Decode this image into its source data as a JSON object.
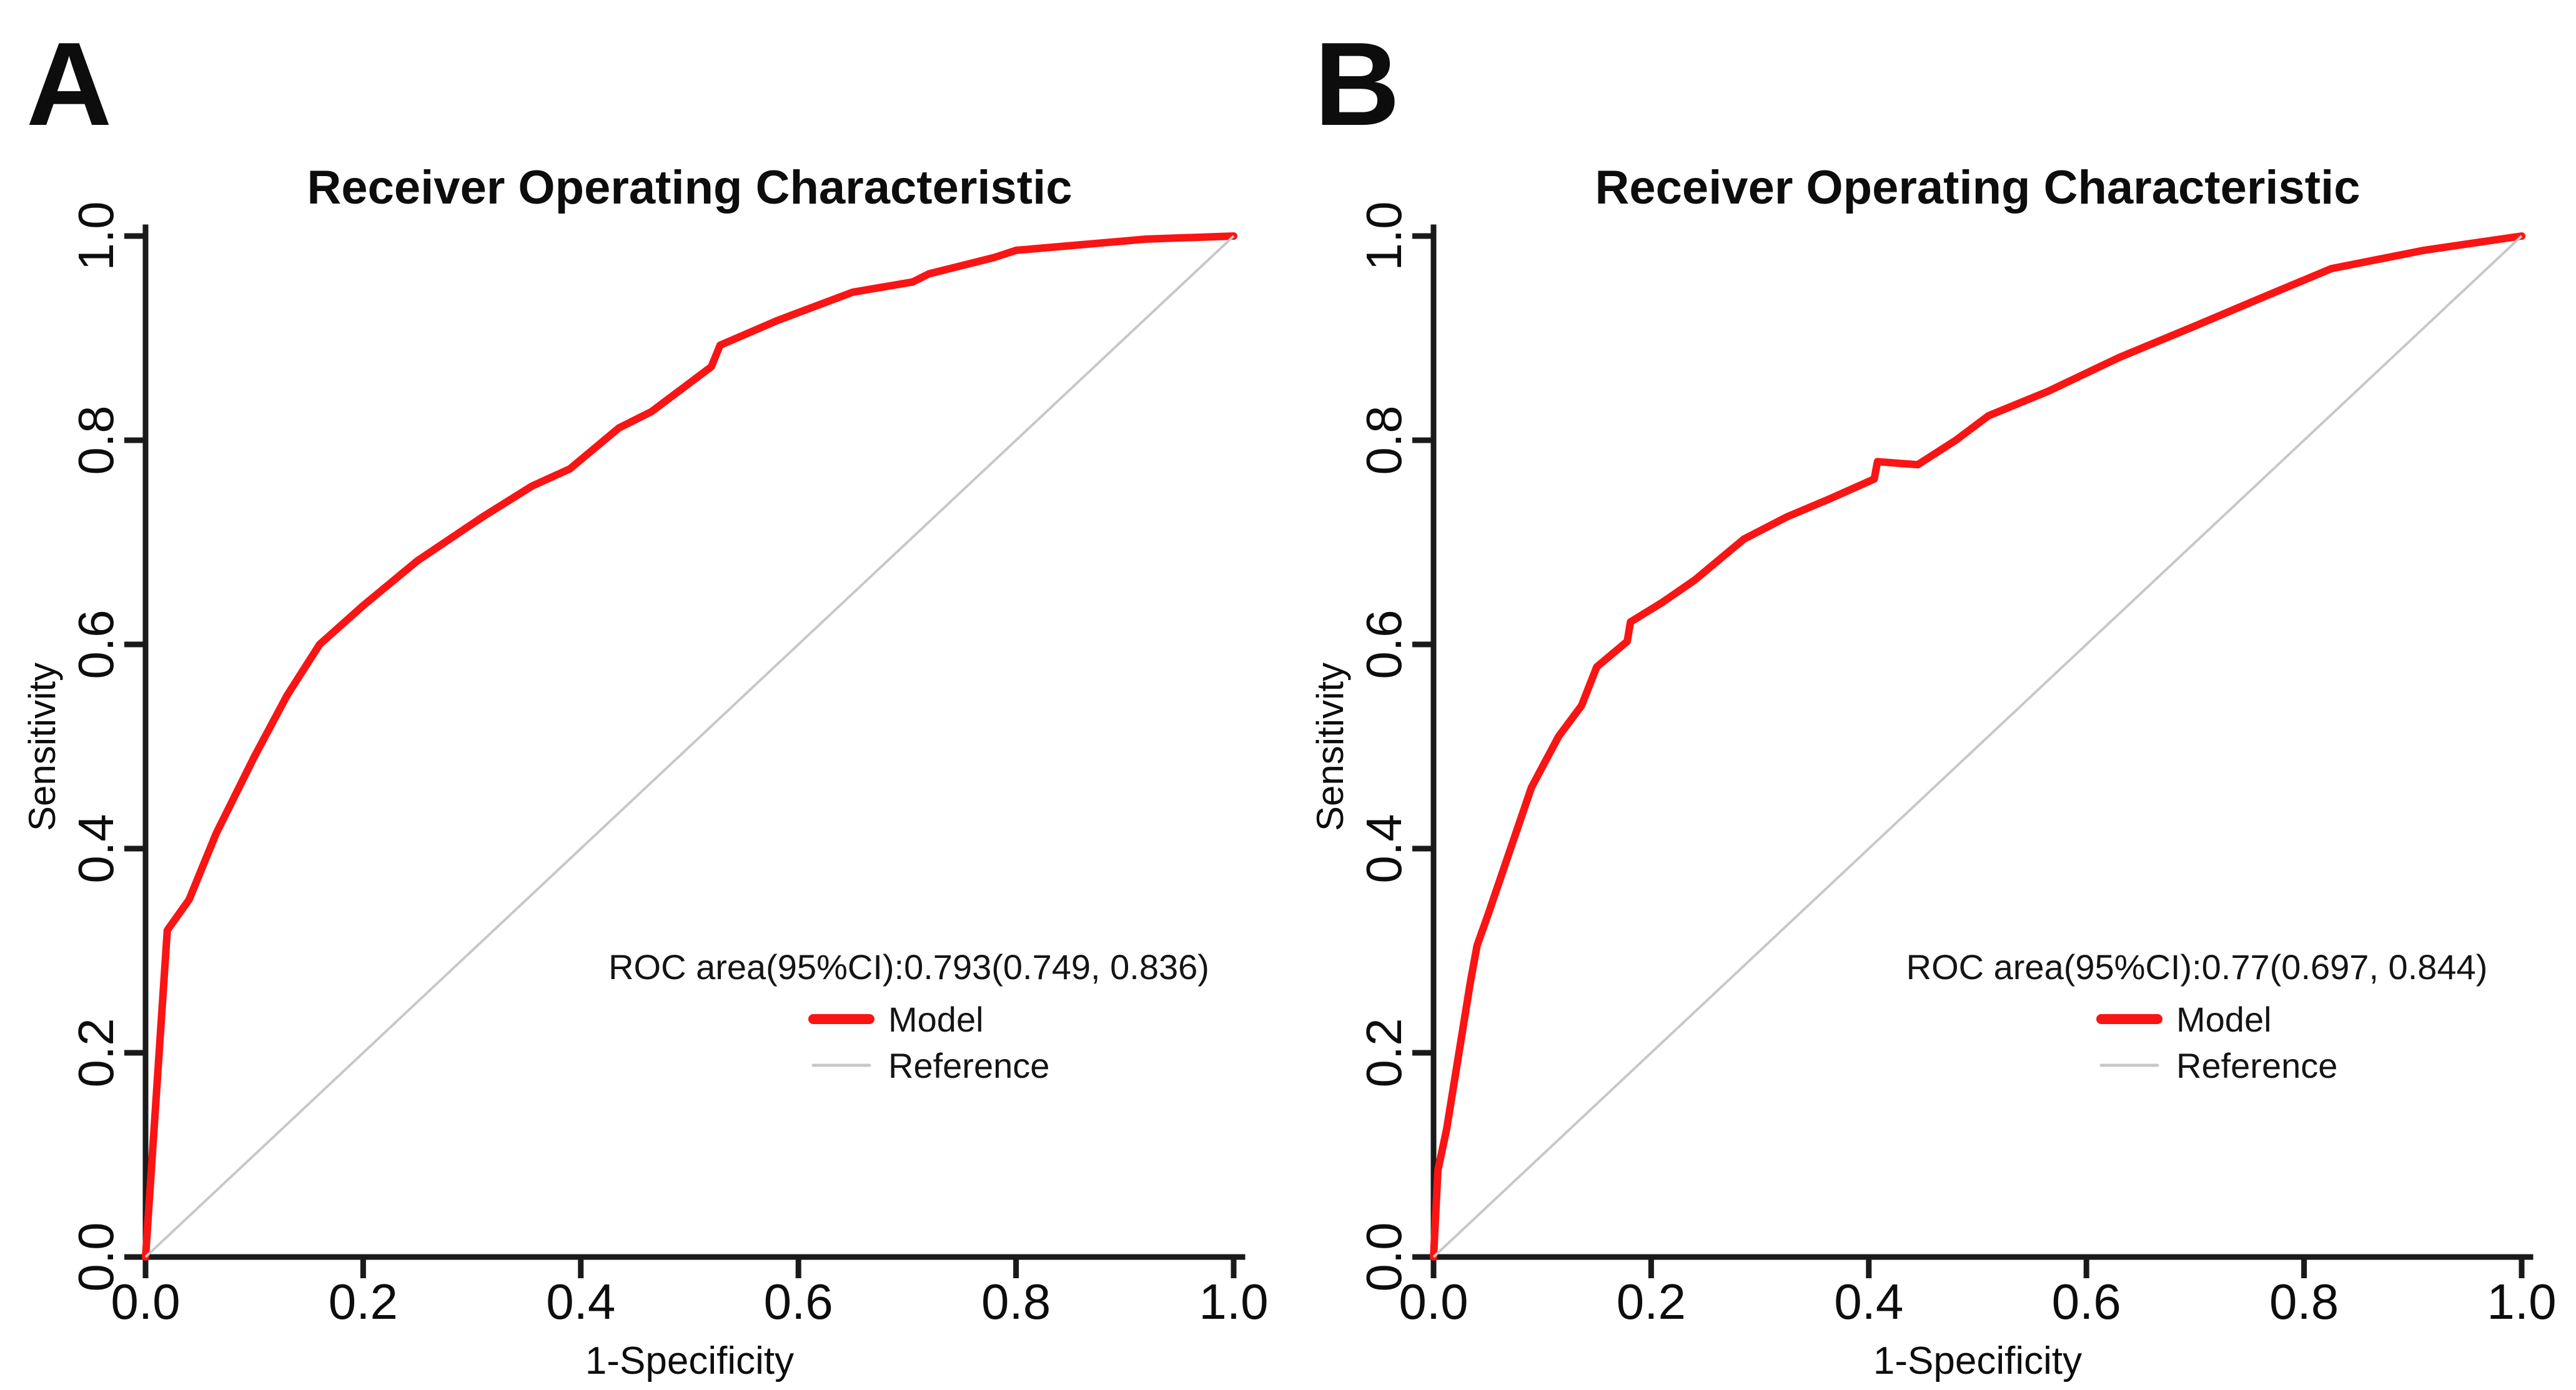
{
  "figure": {
    "background": "#ffffff"
  },
  "colors": {
    "model": "#fa1414",
    "reference": "#c8c8c8",
    "axis": "#1a1a1a",
    "text": "#0d0d0d"
  },
  "panels": [
    {
      "label": "A",
      "title": "Receiver Operating Characteristic",
      "legend": {
        "auc_text": "ROC area(95%CI):0.793(0.749, 0.836)",
        "entries": [
          {
            "label": "Model",
            "color": "#fa1414",
            "kind": "model-line"
          },
          {
            "label": "Reference",
            "color": "#c8c8c8",
            "kind": "reference-line"
          }
        ]
      },
      "chart_data": {
        "type": "line",
        "title": "Receiver Operating Characteristic",
        "xlabel": "1-Specificity",
        "ylabel": "Sensitivity",
        "xlim": [
          0,
          1
        ],
        "ylim": [
          0,
          1
        ],
        "grid": false,
        "legend_position": "lower-right",
        "xticks": [
          0,
          0.2,
          0.4,
          0.6,
          0.8,
          1
        ],
        "yticks": [
          0,
          0.2,
          0.4,
          0.6,
          0.8,
          1
        ],
        "xtick_labels": [
          "0.0",
          "0.2",
          "0.4",
          "0.6",
          "0.8",
          "1.0"
        ],
        "ytick_labels": [
          "0.0",
          "0.2",
          "0.4",
          "0.6",
          "0.8",
          "1.0"
        ],
        "roc_area": 0.793,
        "ci_low": 0.749,
        "ci_high": 0.836,
        "series": [
          {
            "name": "Model",
            "color": "#fa1414",
            "points": [
              [
                0,
                0
              ],
              [
                0.02,
                0.32
              ],
              [
                0.04,
                0.35
              ],
              [
                0.065,
                0.415
              ],
              [
                0.1,
                0.49
              ],
              [
                0.13,
                0.55
              ],
              [
                0.16,
                0.6
              ],
              [
                0.2,
                0.638
              ],
              [
                0.25,
                0.682
              ],
              [
                0.31,
                0.725
              ],
              [
                0.355,
                0.755
              ],
              [
                0.39,
                0.772
              ],
              [
                0.435,
                0.812
              ],
              [
                0.465,
                0.828
              ],
              [
                0.52,
                0.872
              ],
              [
                0.528,
                0.893
              ],
              [
                0.58,
                0.917
              ],
              [
                0.65,
                0.945
              ],
              [
                0.705,
                0.955
              ],
              [
                0.72,
                0.963
              ],
              [
                0.78,
                0.979
              ],
              [
                0.8,
                0.986
              ],
              [
                0.92,
                0.997
              ],
              [
                1,
                1
              ]
            ]
          },
          {
            "name": "Reference",
            "color": "#c8c8c8",
            "points": [
              [
                0,
                0
              ],
              [
                1,
                1
              ]
            ]
          }
        ]
      }
    },
    {
      "label": "B",
      "title": "Receiver Operating Characteristic",
      "legend": {
        "auc_text": "ROC area(95%CI):0.77(0.697, 0.844)",
        "entries": [
          {
            "label": "Model",
            "color": "#fa1414",
            "kind": "model-line"
          },
          {
            "label": "Reference",
            "color": "#c8c8c8",
            "kind": "reference-line"
          }
        ]
      },
      "chart_data": {
        "type": "line",
        "title": "Receiver Operating Characteristic",
        "xlabel": "1-Specificity",
        "ylabel": "Sensitivity",
        "xlim": [
          0,
          1
        ],
        "ylim": [
          0,
          1
        ],
        "grid": false,
        "legend_position": "lower-right",
        "xticks": [
          0,
          0.2,
          0.4,
          0.6,
          0.8,
          1
        ],
        "yticks": [
          0,
          0.2,
          0.4,
          0.6,
          0.8,
          1
        ],
        "xtick_labels": [
          "0.0",
          "0.2",
          "0.4",
          "0.6",
          "0.8",
          "1.0"
        ],
        "ytick_labels": [
          "0.0",
          "0.2",
          "0.4",
          "0.6",
          "0.8",
          "1.0"
        ],
        "roc_area": 0.77,
        "ci_low": 0.697,
        "ci_high": 0.844,
        "series": [
          {
            "name": "Model",
            "color": "#fa1414",
            "points": [
              [
                0,
                0
              ],
              [
                0.004,
                0.085
              ],
              [
                0.012,
                0.125
              ],
              [
                0.034,
                0.27
              ],
              [
                0.04,
                0.305
              ],
              [
                0.05,
                0.335
              ],
              [
                0.09,
                0.46
              ],
              [
                0.115,
                0.51
              ],
              [
                0.136,
                0.54
              ],
              [
                0.15,
                0.578
              ],
              [
                0.178,
                0.603
              ],
              [
                0.181,
                0.622
              ],
              [
                0.21,
                0.641
              ],
              [
                0.24,
                0.663
              ],
              [
                0.285,
                0.703
              ],
              [
                0.325,
                0.725
              ],
              [
                0.365,
                0.743
              ],
              [
                0.405,
                0.762
              ],
              [
                0.408,
                0.779
              ],
              [
                0.445,
                0.776
              ],
              [
                0.48,
                0.8
              ],
              [
                0.51,
                0.824
              ],
              [
                0.565,
                0.848
              ],
              [
                0.63,
                0.881
              ],
              [
                0.7,
                0.912
              ],
              [
                0.76,
                0.939
              ],
              [
                0.825,
                0.968
              ],
              [
                0.91,
                0.986
              ],
              [
                1,
                1
              ]
            ]
          },
          {
            "name": "Reference",
            "color": "#c8c8c8",
            "points": [
              [
                0,
                0
              ],
              [
                1,
                1
              ]
            ]
          }
        ]
      }
    }
  ]
}
